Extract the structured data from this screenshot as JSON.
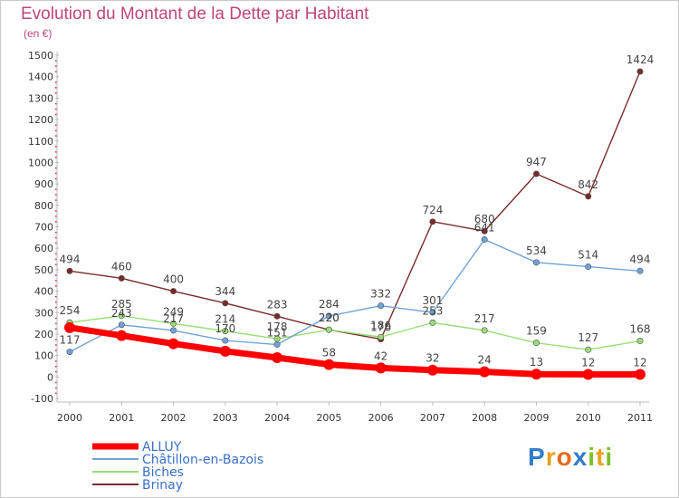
{
  "title": "Evolution du Montant de la Dette par Habitant",
  "subtitle": "(en €)",
  "logo": {
    "text": "Proxiti",
    "letters": [
      "P",
      "r",
      "o",
      "x",
      "i",
      "t",
      "i"
    ],
    "colors": [
      "#2f7dc9",
      "#e9a21c",
      "#e86b1c",
      "#2f7dc9",
      "#7cbf2a",
      "#e9a21c",
      "#7cbf2a"
    ]
  },
  "chart_data": {
    "type": "line",
    "title": "Evolution du Montant de la Dette par Habitant",
    "subtitle": "(en €)",
    "x": [
      "2000",
      "2001",
      "2002",
      "2003",
      "2004",
      "2005",
      "2006",
      "2007",
      "2008",
      "2009",
      "2010",
      "2011"
    ],
    "y_ticks": [
      "-100",
      "0",
      "100",
      "200",
      "300",
      "400",
      "500",
      "600",
      "700",
      "800",
      "900",
      "1000",
      "1100",
      "1200",
      "1300",
      "1400",
      "1500"
    ],
    "ylim": [
      -100,
      1500
    ],
    "grid": false,
    "legend_position": "bottom-left",
    "series": [
      {
        "name": "ALLUY",
        "color": "#ff0000",
        "values": [
          230,
          193,
          155,
          120,
          90,
          58,
          42,
          32,
          24,
          13,
          12,
          12
        ],
        "labels": [
          "230",
          "193",
          "155",
          "120",
          "90",
          "58",
          "42",
          "32",
          "24",
          "13",
          "12",
          "12"
        ],
        "label_idx": [
          5,
          6,
          7,
          8,
          9,
          10,
          11
        ]
      },
      {
        "name": "Châtillon-en-Bazois",
        "color": "#6fa3d8",
        "values": [
          117,
          243,
          217,
          170,
          151,
          284,
          332,
          301,
          641,
          534,
          514,
          494
        ],
        "labels": [
          "117",
          "243",
          "217",
          "170",
          "151",
          "284",
          "332",
          "301",
          "641",
          "534",
          "514",
          "494"
        ],
        "label_idx": [
          0,
          1,
          2,
          3,
          4,
          5,
          6,
          7,
          8,
          9,
          10,
          11
        ]
      },
      {
        "name": "Biches",
        "color": "#99dd77",
        "values": [
          254,
          285,
          249,
          214,
          178,
          220,
          186,
          253,
          217,
          159,
          127,
          168
        ],
        "labels": [
          "254",
          "285",
          "249",
          "214",
          "178",
          "220",
          "186",
          "253",
          "217",
          "159",
          "127",
          "168"
        ],
        "label_idx": [
          0,
          1,
          2,
          3,
          4,
          5,
          6,
          7,
          8,
          9,
          10,
          11
        ]
      },
      {
        "name": "Brinay",
        "color": "#7a2a2a",
        "values": [
          494,
          460,
          400,
          344,
          283,
          220,
          176,
          724,
          680,
          947,
          842,
          1424
        ],
        "labels": [
          "494",
          "460",
          "400",
          "344",
          "283",
          "220",
          "176",
          "724",
          "680",
          "947",
          "842",
          "1424"
        ],
        "label_idx": [
          0,
          1,
          2,
          3,
          4,
          5,
          6,
          7,
          8,
          9,
          10,
          11
        ]
      }
    ]
  }
}
